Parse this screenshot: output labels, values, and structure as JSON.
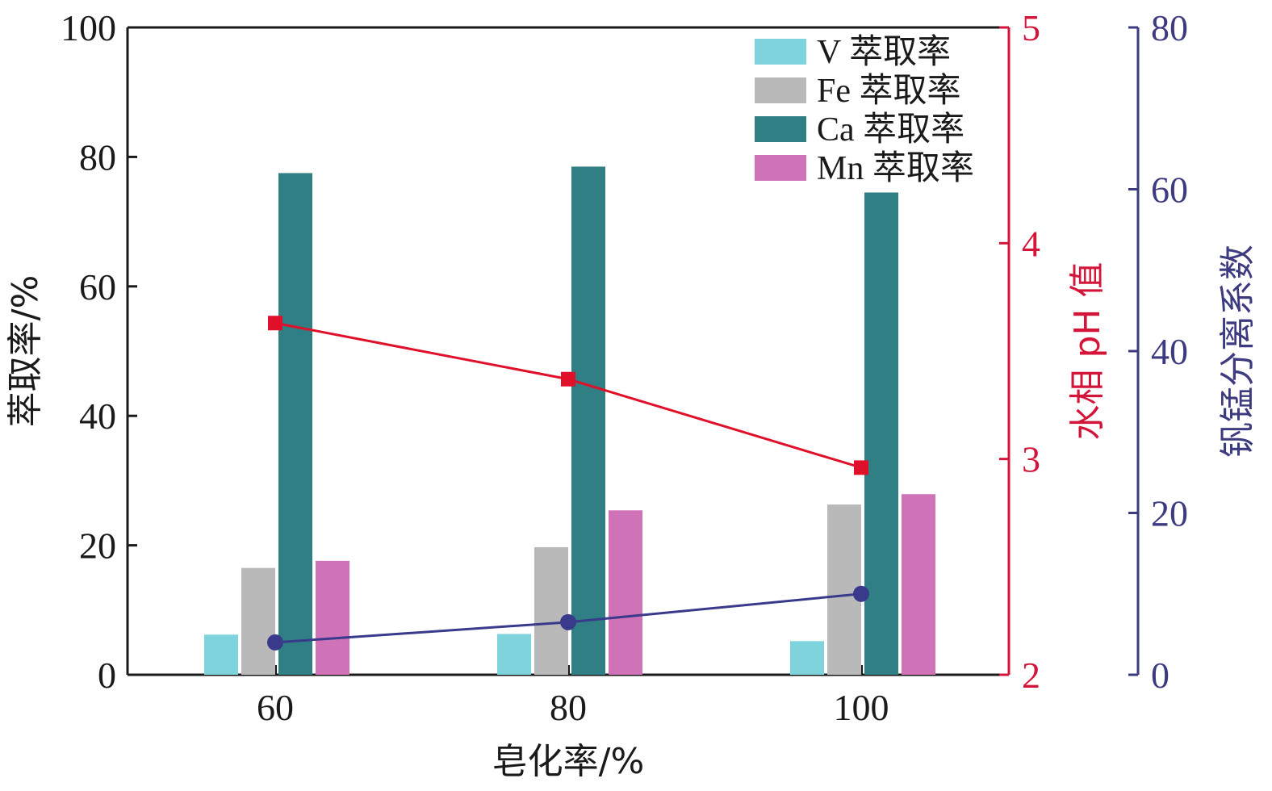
{
  "chart_data": {
    "type": "bar",
    "categories": [
      "60",
      "80",
      "100"
    ],
    "xlabel": "皂化率/%",
    "ylabel_left": "萃取率/%",
    "ylabel_right1": "水相 pH 值",
    "ylabel_right2": "钒锰分离系数",
    "ylim_left": [
      0,
      100
    ],
    "yticks_left": [
      "0",
      "20",
      "40",
      "60",
      "80",
      "100"
    ],
    "ylim_right1": [
      2,
      5
    ],
    "yticks_right1": [
      "2",
      "3",
      "4",
      "5"
    ],
    "ylim_right2": [
      0,
      80
    ],
    "yticks_right2": [
      "0",
      "20",
      "40",
      "60",
      "80"
    ],
    "legend_position": "top-right",
    "grid": false,
    "bar_series": [
      {
        "name": "V 萃取率",
        "color": "#7fd3dc",
        "values": [
          6.2,
          6.3,
          5.2
        ]
      },
      {
        "name": "Fe 萃取率",
        "color": "#b9b9b9",
        "values": [
          16.5,
          19.7,
          26.3
        ]
      },
      {
        "name": "Ca 萃取率",
        "color": "#2f7f84",
        "values": [
          77.5,
          78.5,
          74.5
        ]
      },
      {
        "name": "Mn 萃取率",
        "color": "#cf72b8",
        "values": [
          17.6,
          25.4,
          27.9
        ]
      }
    ],
    "line_series": [
      {
        "axis": "right1",
        "color": "#e0102a",
        "marker": "square",
        "values": [
          3.63,
          3.37,
          2.96
        ]
      },
      {
        "axis": "right2",
        "color": "#3a3a8c",
        "marker": "circle",
        "values": [
          4,
          6.5,
          10
        ]
      }
    ],
    "colors": {
      "axis_left": "#1a1a1a",
      "axis_right1": "#d4153a",
      "axis_right2": "#3d3b80"
    }
  }
}
